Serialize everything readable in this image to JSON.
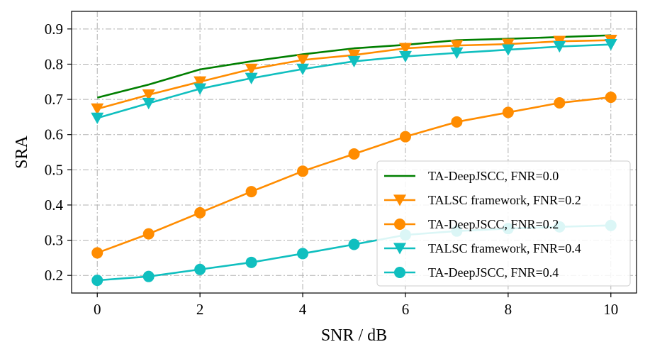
{
  "chart_data": {
    "type": "line",
    "title": "",
    "xlabel": "SNR / dB",
    "ylabel": "SRA",
    "xlim": [
      -0.5,
      10.5
    ],
    "ylim": [
      0.15,
      0.95
    ],
    "xticks": [
      0,
      2,
      4,
      6,
      8,
      10
    ],
    "xtick_labels": [
      "0",
      "2",
      "4",
      "6",
      "8",
      "10"
    ],
    "yticks": [
      0.2,
      0.3,
      0.4,
      0.5,
      0.6,
      0.7,
      0.8,
      0.9
    ],
    "ytick_labels": [
      "0.2",
      "0.3",
      "0.4",
      "0.5",
      "0.6",
      "0.7",
      "0.8",
      "0.9"
    ],
    "grid": true,
    "legend_position": "lower-right",
    "x": [
      0,
      1,
      2,
      3,
      4,
      5,
      6,
      7,
      8,
      9,
      10
    ],
    "series": [
      {
        "name": "TA-DeepJSCC, FNR=0.0",
        "color": "#007f00",
        "marker": "none",
        "values": [
          0.705,
          0.742,
          0.785,
          0.808,
          0.828,
          0.845,
          0.855,
          0.868,
          0.872,
          0.877,
          0.882
        ]
      },
      {
        "name": "TALSC framework, FNR=0.2",
        "color": "#ff8c00",
        "marker": "triangle-down",
        "values": [
          0.673,
          0.713,
          0.75,
          0.786,
          0.812,
          0.826,
          0.845,
          0.853,
          0.857,
          0.865,
          0.868
        ]
      },
      {
        "name": "TA-DeepJSCC, FNR=0.2",
        "color": "#ff8c00",
        "marker": "circle",
        "values": [
          0.264,
          0.318,
          0.378,
          0.438,
          0.496,
          0.545,
          0.594,
          0.636,
          0.663,
          0.69,
          0.706
        ]
      },
      {
        "name": "TALSC framework, FNR=0.4",
        "color": "#10bfbf",
        "marker": "triangle-down",
        "values": [
          0.647,
          0.689,
          0.73,
          0.76,
          0.786,
          0.808,
          0.822,
          0.832,
          0.841,
          0.85,
          0.856
        ]
      },
      {
        "name": "TA-DeepJSCC, FNR=0.4",
        "color": "#10bfbf",
        "marker": "circle",
        "values": [
          0.186,
          0.197,
          0.217,
          0.237,
          0.262,
          0.288,
          0.315,
          0.326,
          0.333,
          0.338,
          0.342
        ]
      }
    ]
  }
}
